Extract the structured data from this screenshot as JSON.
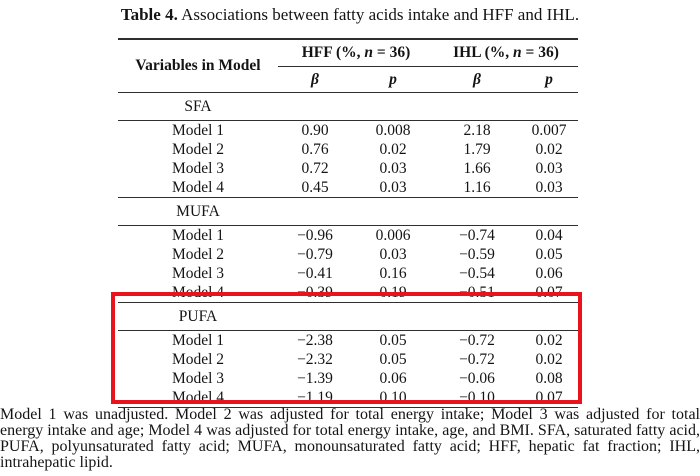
{
  "caption": {
    "label": "Table 4.",
    "text": " Associations between fatty acids intake and HFF and IHL."
  },
  "table": {
    "variables_header": "Variables in Model",
    "groups": [
      {
        "pre": "HFF (%, ",
        "var": "n",
        "post": " = 36)"
      },
      {
        "pre": "IHL (%, ",
        "var": "n",
        "post": " = 36)"
      }
    ],
    "stat_headers": [
      "β",
      "p",
      "β",
      "p"
    ],
    "sections": [
      {
        "name": "SFA",
        "highlighted": false,
        "rows": [
          {
            "label": "Model 1",
            "values": [
              "0.90",
              "0.008",
              "2.18",
              "0.007"
            ]
          },
          {
            "label": "Model 2",
            "values": [
              "0.76",
              "0.02",
              "1.79",
              "0.02"
            ]
          },
          {
            "label": "Model 3",
            "values": [
              "0.72",
              "0.03",
              "1.66",
              "0.03"
            ]
          },
          {
            "label": "Model 4",
            "values": [
              "0.45",
              "0.03",
              "1.16",
              "0.03"
            ]
          }
        ]
      },
      {
        "name": "MUFA",
        "highlighted": false,
        "rows": [
          {
            "label": "Model 1",
            "values": [
              "−0.96",
              "0.006",
              "−0.74",
              "0.04"
            ]
          },
          {
            "label": "Model 2",
            "values": [
              "−0.79",
              "0.03",
              "−0.59",
              "0.05"
            ]
          },
          {
            "label": "Model 3",
            "values": [
              "−0.41",
              "0.16",
              "−0.54",
              "0.06"
            ]
          },
          {
            "label": "Model 4",
            "values": [
              "−0.39",
              "0.19",
              "−0.51",
              "0.07"
            ]
          }
        ]
      },
      {
        "name": "PUFA",
        "highlighted": true,
        "rows": [
          {
            "label": "Model 1",
            "values": [
              "−2.38",
              "0.05",
              "−0.72",
              "0.02"
            ]
          },
          {
            "label": "Model 2",
            "values": [
              "−2.32",
              "0.05",
              "−0.72",
              "0.02"
            ]
          },
          {
            "label": "Model 3",
            "values": [
              "−1.39",
              "0.06",
              "−0.06",
              "0.08"
            ]
          },
          {
            "label": "Model 4",
            "values": [
              "−1.19",
              "0.10",
              "−0.10",
              "0.07"
            ]
          }
        ]
      }
    ]
  },
  "highlight_color": "#e8131b",
  "footnote": "Model 1 was unadjusted.  Model 2 was adjusted for total energy intake; Model 3 was adjusted for total energy intake and age; Model 4 was adjusted for total energy intake, age, and BMI. SFA, saturated fatty acid, PUFA, polyunsaturated fatty acid; MUFA, monounsaturated fatty acid; HFF, hepatic fat fraction; IHL, intrahepatic lipid."
}
